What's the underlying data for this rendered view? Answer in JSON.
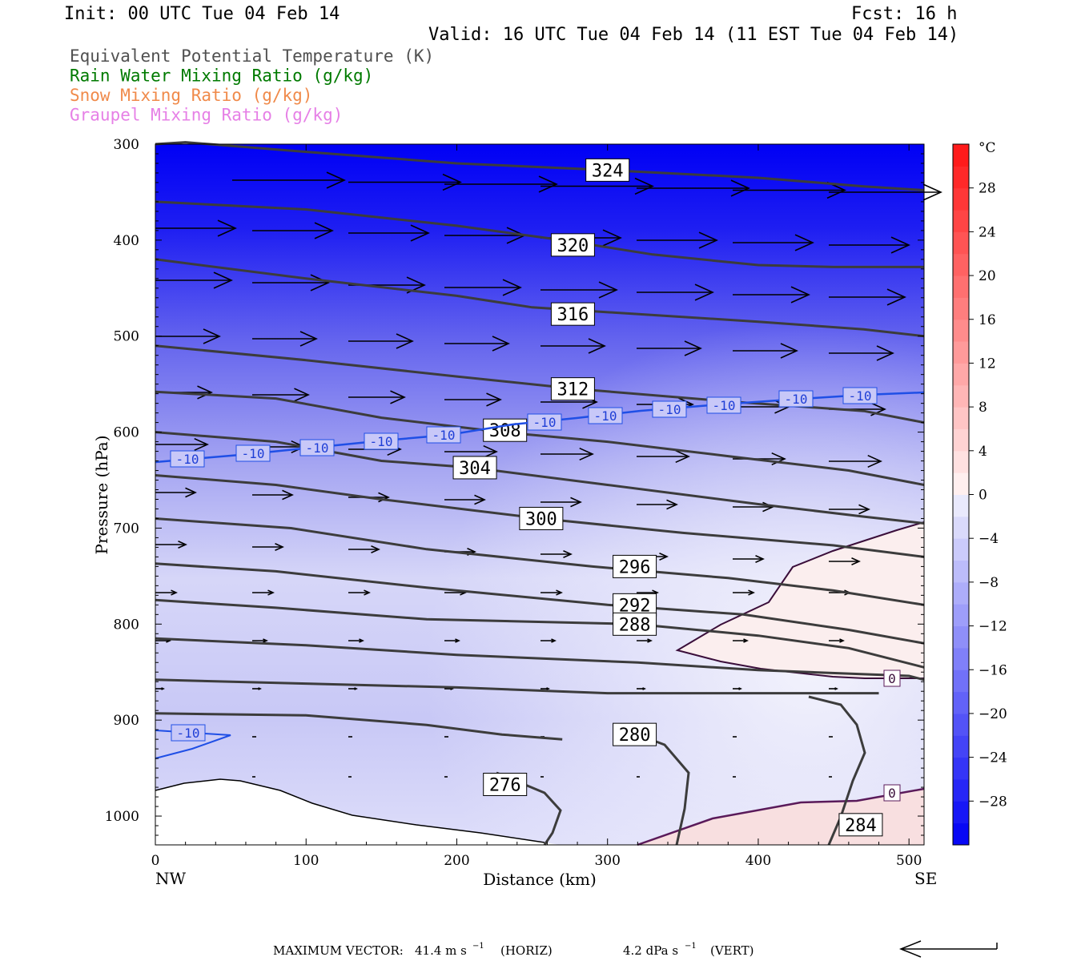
{
  "header": {
    "init": "Init: 00 UTC Tue 04 Feb 14",
    "fcst": "Fcst:   16 h",
    "valid": "Valid: 16 UTC Tue 04 Feb 14 (11 EST Tue 04 Feb 14)"
  },
  "legend": [
    {
      "text": "Equivalent Potential Temperature (K)",
      "color": "#505050"
    },
    {
      "text": "Rain Water Mixing Ratio (g/kg)",
      "color": "#007a00"
    },
    {
      "text": "Snow Mixing Ratio (g/kg)",
      "color": "#f08a4a"
    },
    {
      "text": "Graupel Mixing Ratio (g/kg)",
      "color": "#e680e6"
    }
  ],
  "footer": {
    "max_vector_label": "MAXIMUM VECTOR:",
    "horiz_value": "41.4 m s",
    "horiz_unit": "(HORIZ)",
    "vert_value": "4.2 dPa s",
    "vert_unit": "(VERT)"
  },
  "chart_data": {
    "type": "cross-section",
    "xlabel": "Distance (km)",
    "ylabel": "Pressure (hPa)",
    "xlim": [
      0,
      510
    ],
    "ylim": [
      300,
      1030
    ],
    "x_ticks": [
      0,
      100,
      200,
      300,
      400,
      500
    ],
    "y_ticks": [
      300,
      400,
      500,
      600,
      700,
      800,
      900,
      1000
    ],
    "x_end_labels": {
      "left": "NW",
      "right": "SE"
    },
    "colorbar": {
      "unit": "°C",
      "ticks": [
        28,
        24,
        20,
        16,
        12,
        8,
        4,
        0,
        -4,
        -8,
        -12,
        -16,
        -20,
        -24,
        -28
      ],
      "range": [
        -32,
        32
      ]
    },
    "theta_e_contours": [
      {
        "value": 324,
        "points": [
          [
            0,
            300
          ],
          [
            20,
            298
          ],
          [
            100,
            308
          ],
          [
            200,
            320
          ],
          [
            300,
            327
          ],
          [
            400,
            335
          ],
          [
            470,
            344
          ],
          [
            510,
            348
          ]
        ],
        "label_at": [
          300,
          327
        ]
      },
      {
        "value": 320,
        "points": [
          [
            0,
            360
          ],
          [
            100,
            368
          ],
          [
            200,
            385
          ],
          [
            270,
            400
          ],
          [
            330,
            415
          ],
          [
            400,
            426
          ],
          [
            450,
            428
          ],
          [
            510,
            428
          ]
        ],
        "label_at": [
          277,
          405
        ]
      },
      {
        "value": 316,
        "points": [
          [
            0,
            420
          ],
          [
            100,
            440
          ],
          [
            200,
            458
          ],
          [
            250,
            470
          ],
          [
            330,
            478
          ],
          [
            400,
            485
          ],
          [
            470,
            493
          ],
          [
            510,
            500
          ]
        ],
        "label_at": [
          277,
          477
        ]
      },
      {
        "value": 312,
        "points": [
          [
            0,
            510
          ],
          [
            100,
            525
          ],
          [
            200,
            542
          ],
          [
            280,
            555
          ],
          [
            380,
            568
          ],
          [
            470,
            578
          ],
          [
            510,
            590
          ]
        ],
        "label_at": [
          277,
          555
        ]
      },
      {
        "value": 308,
        "points": [
          [
            0,
            558
          ],
          [
            80,
            565
          ],
          [
            150,
            585
          ],
          [
            230,
            600
          ],
          [
            300,
            610
          ],
          [
            380,
            625
          ],
          [
            460,
            640
          ],
          [
            510,
            655
          ]
        ],
        "label_at": [
          232,
          598
        ]
      },
      {
        "value": 304,
        "points": [
          [
            0,
            600
          ],
          [
            80,
            610
          ],
          [
            150,
            630
          ],
          [
            210,
            637
          ],
          [
            300,
            655
          ],
          [
            400,
            675
          ],
          [
            470,
            688
          ],
          [
            510,
            695
          ]
        ],
        "label_at": [
          212,
          637
        ]
      },
      {
        "value": 300,
        "points": [
          [
            0,
            645
          ],
          [
            80,
            655
          ],
          [
            150,
            670
          ],
          [
            256,
            690
          ],
          [
            350,
            705
          ],
          [
            450,
            718
          ],
          [
            510,
            730
          ]
        ],
        "label_at": [
          256,
          690
        ]
      },
      {
        "value": 296,
        "points": [
          [
            0,
            690
          ],
          [
            90,
            700
          ],
          [
            180,
            722
          ],
          [
            290,
            740
          ],
          [
            380,
            752
          ],
          [
            450,
            765
          ],
          [
            510,
            780
          ]
        ],
        "label_at": [
          318,
          740
        ]
      },
      {
        "value": 292,
        "points": [
          [
            0,
            737
          ],
          [
            80,
            745
          ],
          [
            180,
            762
          ],
          [
            300,
            780
          ],
          [
            390,
            790
          ],
          [
            460,
            806
          ],
          [
            510,
            820
          ]
        ],
        "label_at": [
          318,
          780
        ]
      },
      {
        "value": 288,
        "points": [
          [
            0,
            775
          ],
          [
            80,
            783
          ],
          [
            180,
            795
          ],
          [
            318,
            800
          ],
          [
            400,
            812
          ],
          [
            460,
            825
          ],
          [
            510,
            845
          ]
        ],
        "label_at": [
          318,
          800
        ]
      },
      {
        "value": 284,
        "points": [
          [
            0,
            815
          ],
          [
            100,
            822
          ],
          [
            200,
            832
          ],
          [
            320,
            840
          ],
          [
            400,
            848
          ],
          [
            500,
            854
          ],
          [
            510,
            858
          ]
        ],
        "label_at": [
          468,
          1009
        ]
      },
      {
        "value": 280,
        "points": [
          [
            0,
            858
          ],
          [
            100,
            862
          ],
          [
            200,
            866
          ],
          [
            300,
            872
          ],
          [
            380,
            872
          ],
          [
            440,
            872
          ],
          [
            480,
            872
          ]
        ],
        "label_at": [
          318,
          915
        ]
      },
      {
        "value": 276,
        "points": [
          [
            0,
            893
          ],
          [
            100,
            895
          ],
          [
            180,
            905
          ],
          [
            230,
            915
          ],
          [
            270,
            920
          ]
        ],
        "label_at": [
          232,
          967
        ]
      }
    ],
    "temp_minus10_label": "-10",
    "temp_zero_label": "0",
    "wind_barbs": "horizontal westerly wind vectors, strongest aloft"
  }
}
